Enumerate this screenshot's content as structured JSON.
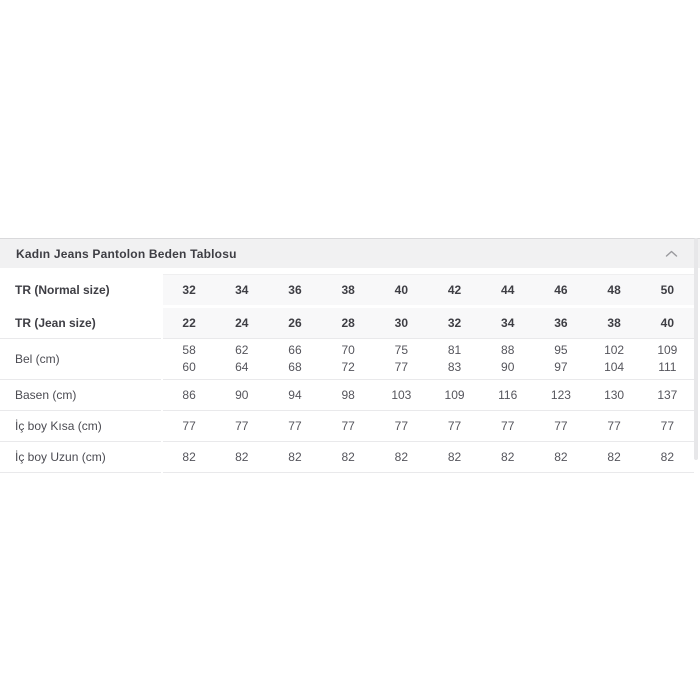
{
  "panel": {
    "title": "Kadın Jeans Pantolon Beden Tablosu",
    "collapse_icon": "chevron-up",
    "header_bg": "#f1f1f2",
    "header_border": "#d9d9db",
    "row_highlight_bg": "#f8f8f9",
    "text_color": "#3e3e44"
  },
  "size_table": {
    "rows": [
      {
        "label": "TR (Normal size)",
        "header": true,
        "values": [
          "32",
          "34",
          "36",
          "38",
          "40",
          "42",
          "44",
          "46",
          "48",
          "50"
        ]
      },
      {
        "label": "TR (Jean size)",
        "header": true,
        "values": [
          "22",
          "24",
          "26",
          "28",
          "30",
          "32",
          "34",
          "36",
          "38",
          "40"
        ]
      },
      {
        "label": "Bel (cm)",
        "header": false,
        "values": [
          [
            "58",
            "60"
          ],
          [
            "62",
            "64"
          ],
          [
            "66",
            "68"
          ],
          [
            "70",
            "72"
          ],
          [
            "75",
            "77"
          ],
          [
            "81",
            "83"
          ],
          [
            "88",
            "90"
          ],
          [
            "95",
            "97"
          ],
          [
            "102",
            "104"
          ],
          [
            "109",
            "111"
          ]
        ]
      },
      {
        "label": "Basen (cm)",
        "header": false,
        "values": [
          "86",
          "90",
          "94",
          "98",
          "103",
          "109",
          "116",
          "123",
          "130",
          "137"
        ]
      },
      {
        "label": "İç boy Kısa (cm)",
        "header": false,
        "values": [
          "77",
          "77",
          "77",
          "77",
          "77",
          "77",
          "77",
          "77",
          "77",
          "77"
        ]
      },
      {
        "label": "İç boy Uzun (cm)",
        "header": false,
        "values": [
          "82",
          "82",
          "82",
          "82",
          "82",
          "82",
          "82",
          "82",
          "82",
          "82"
        ]
      }
    ]
  }
}
